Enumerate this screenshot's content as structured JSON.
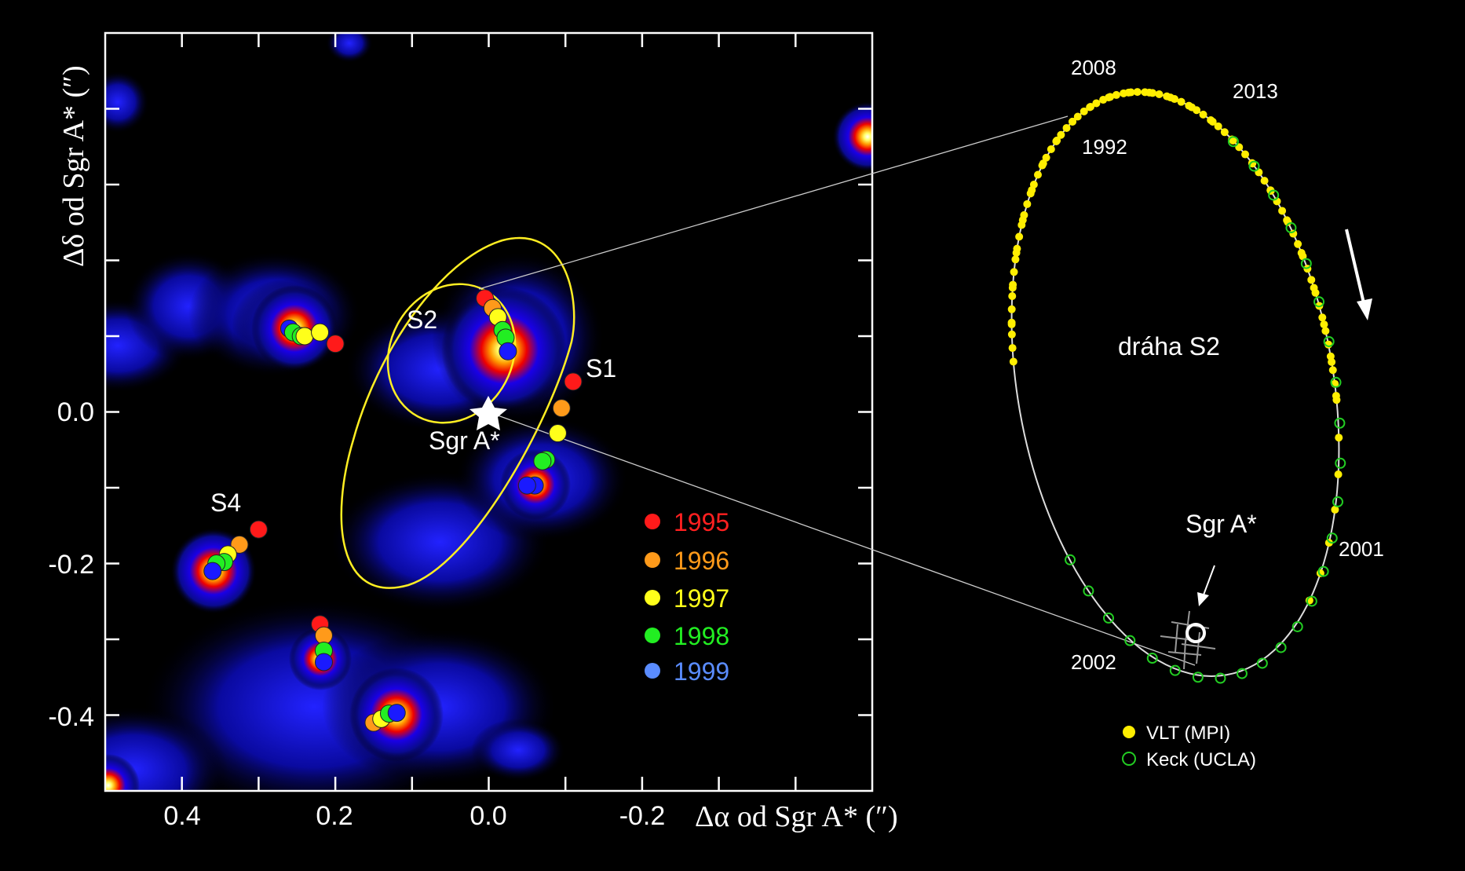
{
  "chart_data": [
    {
      "type": "scatter",
      "xlabel": "Δα od Sgr A* (″)",
      "ylabel": "Δδ od Sgr A* (″)",
      "xlim": [
        0.5,
        -0.5
      ],
      "ylim": [
        -0.5,
        0.5
      ],
      "x_ticks": [
        "0.4",
        "0.2",
        "0.0",
        "-0.2"
      ],
      "y_ticks": [
        "0.0",
        "-0.2",
        "-0.4"
      ],
      "legend": [
        {
          "label": "1995",
          "color": "#ff1a1a"
        },
        {
          "label": "1996",
          "color": "#ff9a1a"
        },
        {
          "label": "1997",
          "color": "#ffff1a"
        },
        {
          "label": "1998",
          "color": "#22ee22"
        },
        {
          "label": "1999",
          "color": "#5a8cff"
        }
      ],
      "star_labels": {
        "s2": "S2",
        "s1": "S1",
        "s4": "S4",
        "sgra": "Sgr A*"
      },
      "series": [
        {
          "name": "S2",
          "x": [
            0.005,
            -0.005,
            -0.012,
            -0.018,
            -0.022,
            -0.025
          ],
          "y": [
            0.15,
            0.137,
            0.125,
            0.108,
            0.098,
            0.08
          ]
        },
        {
          "name": "S1",
          "x": [
            -0.11,
            -0.095,
            -0.09,
            -0.075,
            -0.07,
            -0.06
          ],
          "y": [
            0.04,
            0.005,
            -0.028,
            -0.063,
            -0.065,
            -0.097
          ]
        },
        {
          "name": "S4",
          "x": [
            0.3,
            0.325,
            0.34,
            0.345,
            0.355,
            0.36
          ],
          "y": [
            -0.155,
            -0.175,
            -0.188,
            -0.198,
            -0.2,
            -0.21
          ]
        }
      ]
    },
    {
      "type": "scatter",
      "title": "dráha S2",
      "year_labels": [
        "2008",
        "2013",
        "1992",
        "2001",
        "2002"
      ],
      "sgra_label": "Sgr A*",
      "legend": [
        {
          "label": "VLT (MPI)",
          "color": "#ffee00",
          "marker": "filled-circle"
        },
        {
          "label": "Keck (UCLA)",
          "color": "#22cc22",
          "marker": "open-circle"
        }
      ]
    }
  ]
}
